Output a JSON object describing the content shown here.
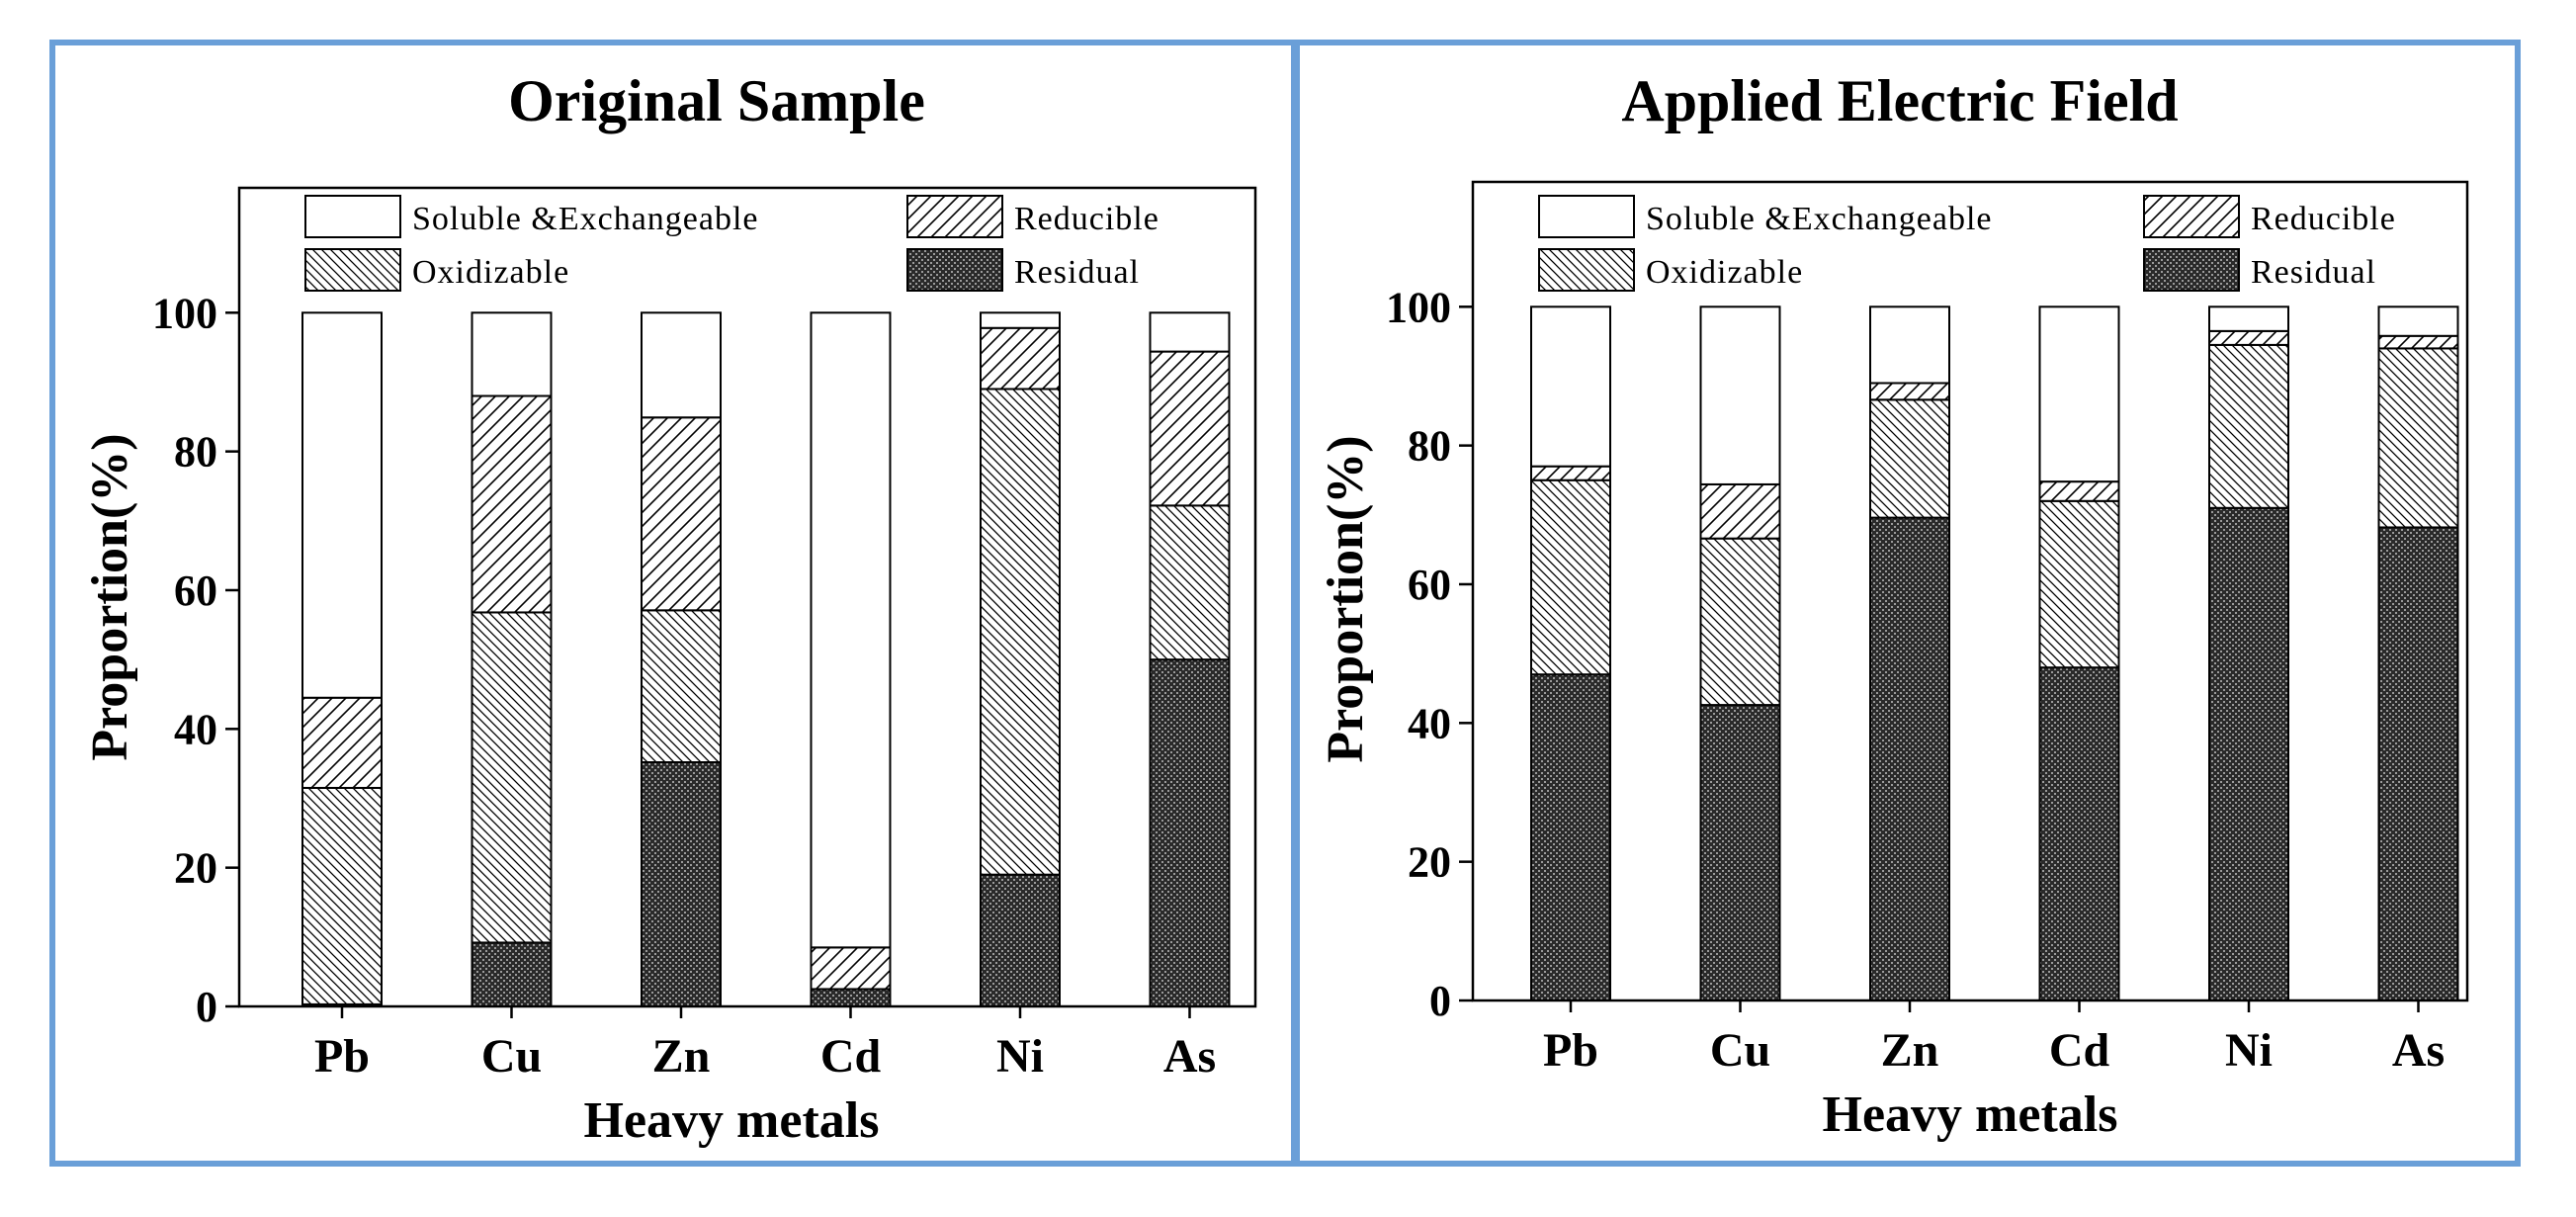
{
  "colors": {
    "frame": "#6a9fd8",
    "stroke": "#000000",
    "fill": "#ffffff"
  },
  "fraction_order": [
    "residual",
    "oxidizable",
    "reducible",
    "soluble"
  ],
  "chart_data": [
    {
      "type": "bar",
      "stacked": true,
      "title": "Original Sample",
      "xlabel": "Heavy metals",
      "ylabel": "Proportion(%)",
      "ylim": [
        0,
        118
      ],
      "yticks": [
        "0",
        "20",
        "40",
        "60",
        "80",
        "100"
      ],
      "legend": [
        "Soluble &Exchangeable",
        "Reducible",
        "Oxidizable",
        "Residual"
      ],
      "categories": [
        "Pb",
        "Cu",
        "Zn",
        "Cd",
        "Ni",
        "As"
      ],
      "series": [
        {
          "name": "Residual",
          "values": [
            0.3,
            9.2,
            35.2,
            2.5,
            19.0,
            50.0
          ]
        },
        {
          "name": "Oxidizable",
          "values": [
            31.2,
            47.6,
            21.9,
            0.0,
            70.0,
            22.2
          ]
        },
        {
          "name": "Reducible",
          "values": [
            13.0,
            31.2,
            27.8,
            6.0,
            8.8,
            22.2
          ]
        },
        {
          "name": "Soluble &Exchangeable",
          "values": [
            55.5,
            12.0,
            15.1,
            91.5,
            2.2,
            5.6
          ]
        }
      ]
    },
    {
      "type": "bar",
      "stacked": true,
      "title": "Applied Electric Field",
      "xlabel": "Heavy metals",
      "ylabel": "Proportion(%)",
      "ylim": [
        0,
        118
      ],
      "yticks": [
        "0",
        "20",
        "40",
        "60",
        "80",
        "100"
      ],
      "legend": [
        "Soluble &Exchangeable",
        "Reducible",
        "Oxidizable",
        "Residual"
      ],
      "categories": [
        "Pb",
        "Cu",
        "Zn",
        "Cd",
        "Ni",
        "As"
      ],
      "series": [
        {
          "name": "Residual",
          "values": [
            47.0,
            42.6,
            69.6,
            48.0,
            71.0,
            68.2
          ]
        },
        {
          "name": "Oxidizable",
          "values": [
            28.0,
            24.0,
            17.0,
            24.0,
            23.5,
            25.8
          ]
        },
        {
          "name": "Reducible",
          "values": [
            2.0,
            7.8,
            2.4,
            2.8,
            2.0,
            1.8
          ]
        },
        {
          "name": "Soluble &Exchangeable",
          "values": [
            23.0,
            25.6,
            11.0,
            25.2,
            3.5,
            4.2
          ]
        }
      ]
    }
  ]
}
